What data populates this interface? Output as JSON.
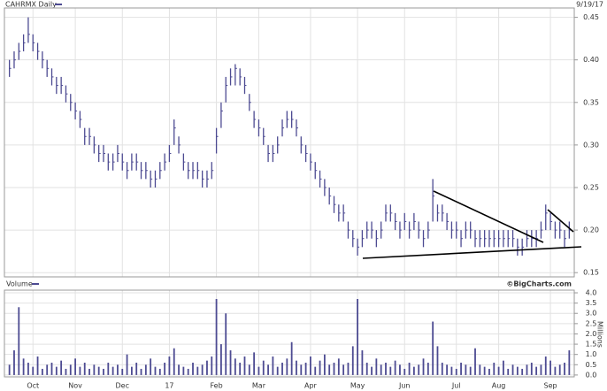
{
  "chart_data": [
    {
      "type": "ohlc",
      "title": "CAHRMX Daily",
      "date_label": "9/19/17",
      "color": "#4d4b92",
      "ylim": [
        0.145,
        0.461
      ],
      "yticks": [
        0.15,
        {
          "value": 0.2,
          "label": "0.20"
        },
        0.25,
        {
          "value": 0.3,
          "label": "0.30"
        },
        0.35,
        {
          "value": 0.4,
          "label": "0.40"
        },
        0.45
      ],
      "grid": true,
      "high": [
        0.4,
        0.41,
        0.42,
        0.43,
        0.45,
        0.43,
        0.42,
        0.41,
        0.4,
        0.39,
        0.38,
        0.38,
        0.37,
        0.36,
        0.35,
        0.34,
        0.32,
        0.32,
        0.31,
        0.3,
        0.3,
        0.29,
        0.29,
        0.3,
        0.29,
        0.28,
        0.29,
        0.29,
        0.28,
        0.28,
        0.27,
        0.27,
        0.28,
        0.29,
        0.3,
        0.33,
        0.31,
        0.29,
        0.28,
        0.28,
        0.28,
        0.27,
        0.27,
        0.28,
        0.32,
        0.35,
        0.38,
        0.39,
        0.395,
        0.39,
        0.38,
        0.36,
        0.34,
        0.33,
        0.32,
        0.3,
        0.3,
        0.31,
        0.33,
        0.34,
        0.34,
        0.33,
        0.31,
        0.3,
        0.29,
        0.28,
        0.27,
        0.26,
        0.25,
        0.24,
        0.23,
        0.23,
        0.21,
        0.2,
        0.19,
        0.2,
        0.21,
        0.21,
        0.2,
        0.21,
        0.23,
        0.23,
        0.22,
        0.21,
        0.22,
        0.21,
        0.22,
        0.21,
        0.2,
        0.21,
        0.26,
        0.23,
        0.23,
        0.22,
        0.21,
        0.21,
        0.2,
        0.21,
        0.21,
        0.2,
        0.2,
        0.2,
        0.2,
        0.2,
        0.2,
        0.2,
        0.2,
        0.2,
        0.19,
        0.19,
        0.2,
        0.2,
        0.2,
        0.21,
        0.23,
        0.22,
        0.21,
        0.21,
        0.2,
        0.21
      ],
      "low": [
        0.38,
        0.39,
        0.4,
        0.41,
        0.42,
        0.41,
        0.4,
        0.39,
        0.38,
        0.37,
        0.36,
        0.36,
        0.35,
        0.34,
        0.33,
        0.32,
        0.3,
        0.3,
        0.29,
        0.28,
        0.28,
        0.27,
        0.27,
        0.28,
        0.27,
        0.26,
        0.27,
        0.27,
        0.26,
        0.26,
        0.25,
        0.25,
        0.26,
        0.27,
        0.28,
        0.3,
        0.29,
        0.27,
        0.26,
        0.26,
        0.26,
        0.25,
        0.25,
        0.26,
        0.29,
        0.32,
        0.35,
        0.37,
        0.37,
        0.37,
        0.36,
        0.34,
        0.32,
        0.31,
        0.3,
        0.28,
        0.28,
        0.29,
        0.31,
        0.32,
        0.32,
        0.31,
        0.29,
        0.28,
        0.27,
        0.26,
        0.25,
        0.24,
        0.23,
        0.22,
        0.21,
        0.21,
        0.19,
        0.18,
        0.17,
        0.18,
        0.19,
        0.19,
        0.18,
        0.19,
        0.21,
        0.21,
        0.2,
        0.19,
        0.2,
        0.19,
        0.2,
        0.19,
        0.18,
        0.19,
        0.21,
        0.21,
        0.21,
        0.2,
        0.19,
        0.19,
        0.18,
        0.19,
        0.19,
        0.18,
        0.18,
        0.18,
        0.18,
        0.18,
        0.18,
        0.18,
        0.18,
        0.18,
        0.17,
        0.17,
        0.18,
        0.18,
        0.18,
        0.19,
        0.2,
        0.2,
        0.19,
        0.19,
        0.18,
        0.19
      ],
      "close": [
        0.39,
        0.4,
        0.41,
        0.42,
        0.43,
        0.42,
        0.41,
        0.4,
        0.39,
        0.38,
        0.37,
        0.37,
        0.36,
        0.35,
        0.34,
        0.33,
        0.31,
        0.31,
        0.3,
        0.29,
        0.29,
        0.28,
        0.28,
        0.29,
        0.28,
        0.27,
        0.28,
        0.28,
        0.27,
        0.27,
        0.26,
        0.26,
        0.27,
        0.28,
        0.29,
        0.32,
        0.3,
        0.28,
        0.27,
        0.27,
        0.27,
        0.26,
        0.26,
        0.27,
        0.31,
        0.34,
        0.37,
        0.38,
        0.39,
        0.38,
        0.37,
        0.35,
        0.33,
        0.32,
        0.31,
        0.29,
        0.29,
        0.3,
        0.32,
        0.33,
        0.33,
        0.32,
        0.3,
        0.29,
        0.28,
        0.27,
        0.26,
        0.25,
        0.24,
        0.23,
        0.22,
        0.22,
        0.2,
        0.19,
        0.18,
        0.19,
        0.2,
        0.2,
        0.19,
        0.2,
        0.22,
        0.22,
        0.21,
        0.2,
        0.21,
        0.2,
        0.21,
        0.2,
        0.19,
        0.2,
        0.24,
        0.22,
        0.22,
        0.21,
        0.2,
        0.2,
        0.19,
        0.2,
        0.2,
        0.19,
        0.19,
        0.19,
        0.19,
        0.19,
        0.19,
        0.19,
        0.19,
        0.19,
        0.18,
        0.18,
        0.19,
        0.19,
        0.19,
        0.2,
        0.22,
        0.21,
        0.2,
        0.2,
        0.19,
        0.2
      ]
    },
    {
      "type": "bar",
      "title": "Volume",
      "y_label": "Millions",
      "source": "©BigCharts.com",
      "color": "#4d4b92",
      "ylim": [
        -0.09,
        4.13
      ],
      "yticks": [
        {
          "value": 0,
          "label": "0.0"
        },
        0.5,
        {
          "value": 1,
          "label": "1.0"
        },
        1.5,
        {
          "value": 2,
          "label": "2.0"
        },
        2.5,
        {
          "value": 3,
          "label": "3.0"
        },
        3.5,
        {
          "value": 4,
          "label": "4.0"
        }
      ],
      "grid": true,
      "categories": [
        null,
        null,
        null,
        null,
        null,
        "Oct",
        null,
        null,
        null,
        null,
        null,
        null,
        null,
        null,
        "Nov",
        null,
        null,
        null,
        null,
        null,
        null,
        null,
        null,
        null,
        "Dec",
        null,
        null,
        null,
        null,
        null,
        null,
        null,
        null,
        null,
        "17",
        null,
        null,
        null,
        null,
        null,
        null,
        null,
        null,
        null,
        "Feb",
        null,
        null,
        null,
        null,
        null,
        null,
        null,
        null,
        "Mar",
        null,
        null,
        null,
        null,
        null,
        null,
        null,
        null,
        null,
        null,
        "Apr",
        null,
        null,
        null,
        null,
        null,
        null,
        null,
        null,
        null,
        "May",
        null,
        null,
        null,
        null,
        null,
        null,
        null,
        null,
        null,
        "Jun",
        null,
        null,
        null,
        null,
        null,
        null,
        null,
        null,
        null,
        null,
        "Jul",
        null,
        null,
        null,
        null,
        null,
        null,
        null,
        null,
        "Aug",
        null,
        null,
        null,
        null,
        null,
        null,
        null,
        null,
        null,
        null,
        "Sep",
        null,
        null,
        null,
        null
      ],
      "values": [
        0.5,
        1.2,
        3.3,
        0.8,
        0.6,
        0.4,
        0.9,
        0.3,
        0.5,
        0.6,
        0.4,
        0.7,
        0.3,
        0.5,
        0.8,
        0.4,
        0.6,
        0.3,
        0.5,
        0.4,
        0.3,
        0.6,
        0.4,
        0.5,
        0.3,
        1.0,
        0.4,
        0.6,
        0.3,
        0.5,
        0.8,
        0.4,
        0.3,
        0.6,
        0.9,
        1.3,
        0.5,
        0.4,
        0.3,
        0.6,
        0.4,
        0.5,
        0.7,
        0.9,
        3.7,
        1.5,
        3.0,
        1.2,
        0.8,
        0.6,
        0.9,
        0.5,
        1.1,
        0.4,
        0.7,
        0.5,
        0.9,
        0.4,
        0.6,
        0.8,
        1.6,
        0.7,
        0.5,
        0.6,
        0.9,
        0.4,
        0.7,
        1.0,
        0.5,
        0.6,
        0.8,
        0.5,
        0.6,
        1.4,
        3.7,
        1.2,
        0.6,
        0.4,
        0.8,
        0.5,
        0.6,
        0.4,
        0.7,
        0.5,
        0.3,
        0.6,
        0.4,
        0.5,
        0.8,
        0.6,
        2.6,
        1.4,
        0.6,
        0.5,
        0.4,
        0.3,
        0.6,
        0.5,
        0.4,
        1.3,
        0.5,
        0.4,
        0.3,
        0.6,
        0.4,
        0.7,
        0.3,
        0.5,
        0.4,
        0.3,
        0.5,
        0.6,
        0.4,
        0.5,
        0.9,
        0.7,
        0.4,
        0.5,
        0.6,
        1.2
      ]
    }
  ]
}
